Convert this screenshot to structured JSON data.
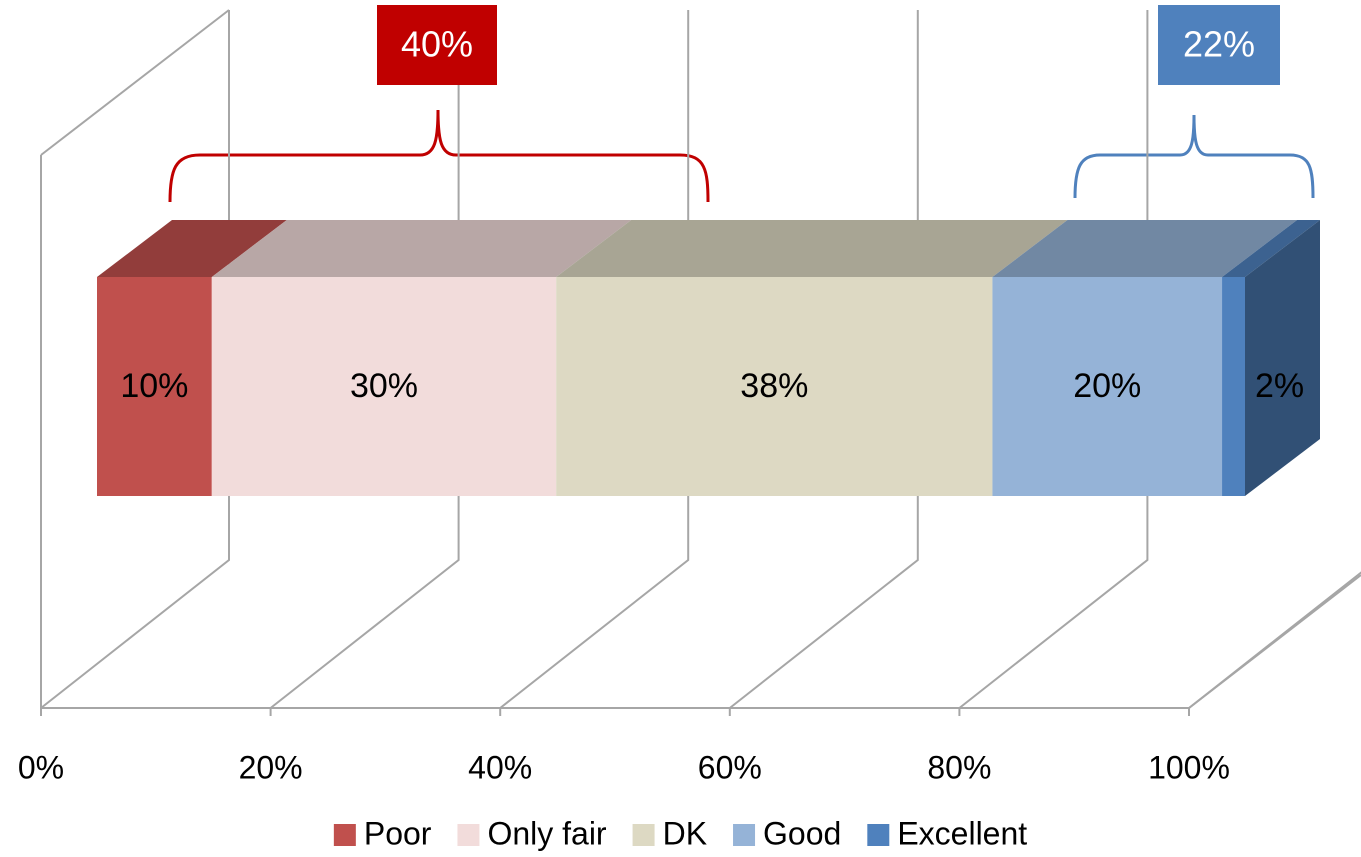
{
  "chart_data": {
    "type": "stacked-bar-3d",
    "series": [
      {
        "name": "Poor",
        "color": "#c0504d",
        "values": [
          10
        ],
        "value_labels": [
          "10%"
        ]
      },
      {
        "name": "Only fair",
        "color": "#f2dcdb",
        "values": [
          30
        ],
        "value_labels": [
          "30%"
        ]
      },
      {
        "name": "DK",
        "color": "#ddd9c3",
        "values": [
          38
        ],
        "value_labels": [
          "38%"
        ]
      },
      {
        "name": "Good",
        "color": "#95b3d7",
        "values": [
          20
        ],
        "value_labels": [
          "20%"
        ]
      },
      {
        "name": "Excellent",
        "color": "#4f81bd",
        "values": [
          2
        ],
        "value_labels": [
          "2%"
        ]
      }
    ],
    "annotations": [
      {
        "text": "40%",
        "color": "#c00000"
      },
      {
        "text": "22%",
        "color": "#4f81bd"
      }
    ],
    "xlim": [
      0,
      100
    ],
    "xticks": [
      {
        "value": 0,
        "label": "0%"
      },
      {
        "value": 20,
        "label": "20%"
      },
      {
        "value": 40,
        "label": "40%"
      },
      {
        "value": 60,
        "label": "60%"
      },
      {
        "value": 80,
        "label": "80%"
      },
      {
        "value": 100,
        "label": "100%"
      }
    ],
    "grid": true,
    "legend": "bottom"
  }
}
